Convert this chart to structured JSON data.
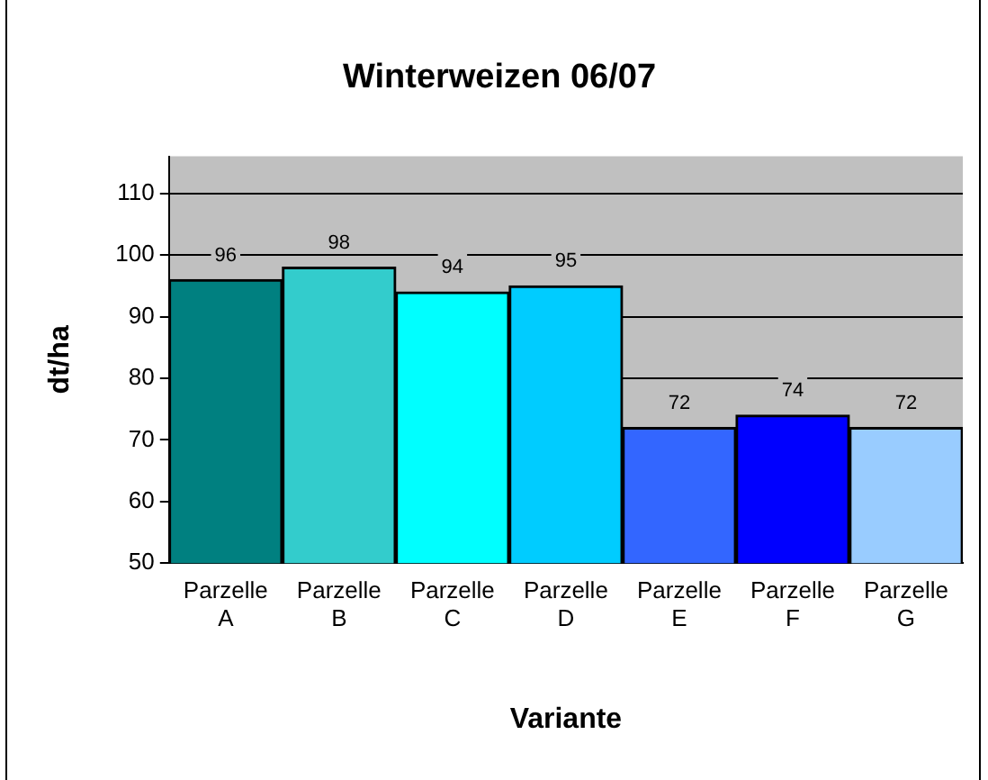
{
  "chart_data": {
    "type": "bar",
    "title": "Winterweizen 06/07",
    "xlabel": "Variante",
    "ylabel": "dt/ha",
    "categories": [
      "Parzelle A",
      "Parzelle B",
      "Parzelle C",
      "Parzelle D",
      "Parzelle E",
      "Parzelle F",
      "Parzelle G"
    ],
    "values": [
      96,
      98,
      94,
      95,
      72,
      74,
      72
    ],
    "colors": [
      "#008080",
      "#33cccc",
      "#00ffff",
      "#00ccff",
      "#3366ff",
      "#0000ff",
      "#99ccff"
    ],
    "ylim": [
      50,
      116
    ],
    "yticks": [
      50,
      60,
      70,
      80,
      90,
      100,
      110
    ],
    "grid": "y",
    "data_labels": true,
    "legend": false
  }
}
